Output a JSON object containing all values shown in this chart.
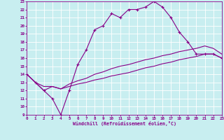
{
  "xlabel": "Windchill (Refroidissement éolien,°C)",
  "xlim": [
    0,
    23
  ],
  "ylim": [
    9,
    23
  ],
  "xticks": [
    0,
    1,
    2,
    3,
    4,
    5,
    6,
    7,
    8,
    9,
    10,
    11,
    12,
    13,
    14,
    15,
    16,
    17,
    18,
    19,
    20,
    21,
    22,
    23
  ],
  "yticks": [
    9,
    10,
    11,
    12,
    13,
    14,
    15,
    16,
    17,
    18,
    19,
    20,
    21,
    22,
    23
  ],
  "bg_color": "#c8eef0",
  "grid_color": "#ffffff",
  "line_color": "#880088",
  "curve1_x": [
    0,
    1,
    2,
    3,
    4,
    5,
    6,
    7,
    8,
    9,
    10,
    11,
    12,
    13,
    14,
    15,
    16,
    17,
    18,
    19,
    20,
    21,
    22,
    23
  ],
  "curve1_y": [
    14.0,
    13.0,
    12.0,
    11.0,
    9.0,
    12.0,
    15.2,
    17.0,
    19.5,
    20.0,
    21.5,
    21.0,
    22.0,
    22.0,
    22.3,
    23.0,
    22.3,
    21.0,
    19.2,
    18.0,
    16.5,
    16.5,
    16.5,
    16.0
  ],
  "curve2_x": [
    0,
    1,
    2,
    3,
    4,
    5,
    6,
    7,
    8,
    9,
    10,
    11,
    12,
    13,
    14,
    15,
    16,
    17,
    18,
    19,
    20,
    21,
    22,
    23
  ],
  "curve2_y": [
    14.0,
    13.0,
    12.5,
    12.5,
    12.2,
    12.5,
    12.8,
    13.0,
    13.3,
    13.5,
    13.8,
    14.0,
    14.2,
    14.5,
    14.8,
    15.0,
    15.3,
    15.5,
    15.8,
    16.0,
    16.2,
    16.5,
    16.5,
    16.0
  ],
  "curve3_x": [
    0,
    1,
    2,
    3,
    4,
    5,
    6,
    7,
    8,
    9,
    10,
    11,
    12,
    13,
    14,
    15,
    16,
    17,
    18,
    19,
    20,
    21,
    22,
    23
  ],
  "curve3_y": [
    14.0,
    13.0,
    12.0,
    12.5,
    12.2,
    12.8,
    13.2,
    13.5,
    14.0,
    14.3,
    14.7,
    15.0,
    15.2,
    15.5,
    15.8,
    16.0,
    16.3,
    16.5,
    16.8,
    17.0,
    17.2,
    17.5,
    17.2,
    16.5
  ]
}
